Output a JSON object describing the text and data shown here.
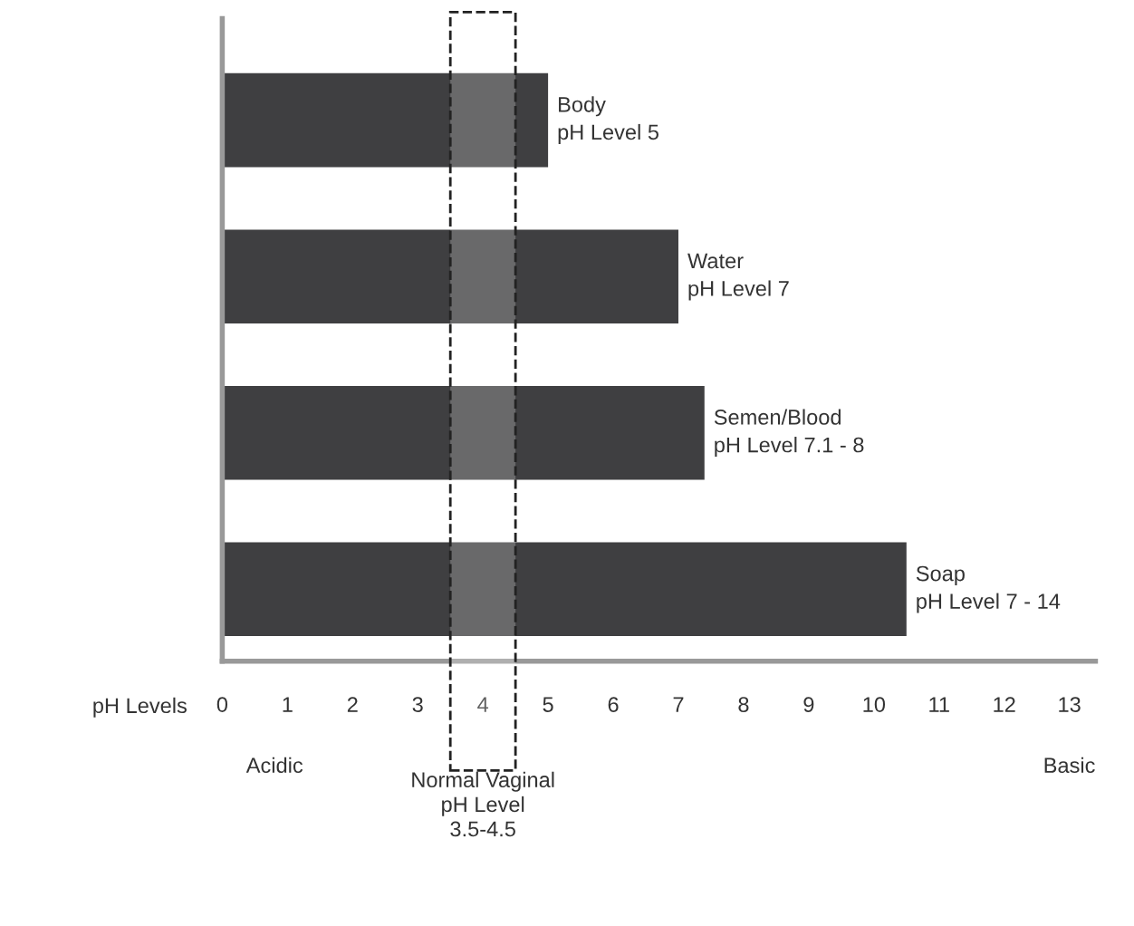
{
  "chart_data": {
    "type": "bar",
    "orientation": "horizontal",
    "xlabel": "pH Levels",
    "categories": [
      null,
      null,
      null,
      null
    ],
    "values": [
      5,
      7,
      7.4,
      10.5
    ],
    "color": "#3f3f41",
    "xlim": [
      0,
      13.4
    ],
    "xticks": [
      0,
      1,
      2,
      3,
      4,
      5,
      6,
      7,
      8,
      9,
      10,
      11,
      12,
      13
    ],
    "grid": false,
    "bands": [
      {
        "axis": "x",
        "from": 3.5,
        "to": 4.5,
        "label": "Normal Vaginal\npH Level\n3.5-4.5"
      }
    ],
    "annotations": [
      {
        "text": "Body\npH Level 5",
        "x": 5
      },
      {
        "text": "Water\npH Level 7",
        "x": 7
      },
      {
        "text": "Semen/Blood\npH Level 7.1 - 8",
        "x": 7.4
      },
      {
        "text": "Soap\npH Level 7 - 14",
        "x": 10.5
      },
      "Acidic",
      "Basic"
    ]
  }
}
